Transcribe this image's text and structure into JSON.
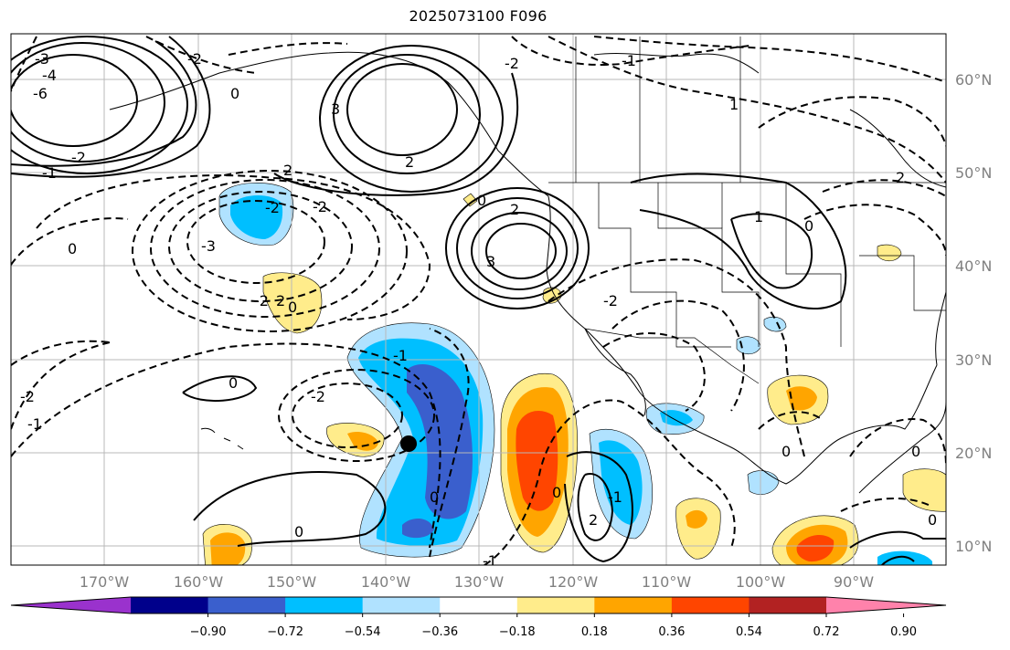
{
  "title": "2025073100 F096",
  "map": {
    "lon_labels": [
      "170°W",
      "160°W",
      "150°W",
      "140°W",
      "130°W",
      "120°W",
      "110°W",
      "100°W",
      "90°W"
    ],
    "lat_labels": [
      "60°N",
      "50°N",
      "40°N",
      "30°N",
      "20°N",
      "10°N"
    ],
    "contour_labels": [
      "-3",
      "-4",
      "-6",
      "-2",
      "-2",
      "0",
      "-1",
      "2",
      "3",
      "2",
      "-2",
      "-1",
      "0",
      "-2",
      "2",
      "-2",
      "-3",
      "-2",
      "0",
      "-2",
      "-1",
      "3",
      "2",
      "0",
      "-1",
      "1",
      "0",
      "-2",
      "0",
      "0",
      "-1",
      "-2",
      "2",
      "-1",
      "0",
      "0",
      "0",
      "1",
      "2",
      "0",
      "0"
    ],
    "marker": "storm-center-dot"
  },
  "colorbar": {
    "ticks": [
      "−0.90",
      "−0.72",
      "−0.54",
      "−0.36",
      "−0.18",
      "0.18",
      "0.36",
      "0.54",
      "0.72",
      "0.90"
    ],
    "colors": [
      "#9a32cd",
      "#00008b",
      "#3a5fcd",
      "#00bfff",
      "#b0e2ff",
      "#ffffff",
      "#ffec8b",
      "#ffa500",
      "#ff4500",
      "#b22222",
      "#ff82ab"
    ]
  }
}
